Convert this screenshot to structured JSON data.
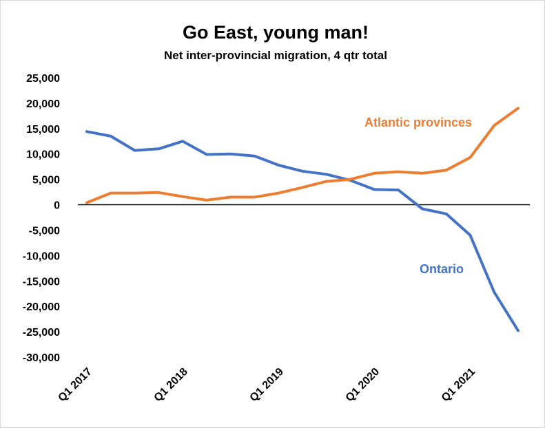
{
  "chart_data": {
    "type": "line",
    "title": "Go East, young man!",
    "subtitle": "Net inter-provincial migration, 4 qtr total",
    "xlabel": "",
    "ylabel": "",
    "ylim": [
      -30000,
      25000
    ],
    "y_ticks": [
      25000,
      20000,
      15000,
      10000,
      5000,
      0,
      -5000,
      -10000,
      -15000,
      -20000,
      -25000,
      -30000
    ],
    "y_tick_labels": [
      "25,000",
      "20,000",
      "15,000",
      "10,000",
      "5,000",
      "0",
      "-5,000",
      "-10,000",
      "-15,000",
      "-20,000",
      "-25,000",
      "-30,000"
    ],
    "x": [
      "Q1 2017",
      "Q2 2017",
      "Q3 2017",
      "Q4 2017",
      "Q1 2018",
      "Q2 2018",
      "Q3 2018",
      "Q4 2018",
      "Q1 2019",
      "Q2 2019",
      "Q3 2019",
      "Q4 2019",
      "Q1 2020",
      "Q2 2020",
      "Q3 2020",
      "Q4 2020",
      "Q1 2021",
      "Q2 2021",
      "Q3 2021"
    ],
    "x_tick_labels": [
      "Q1 2017",
      "Q1 2018",
      "Q1 2019",
      "Q1 2020",
      "Q1 2021"
    ],
    "x_tick_indices": [
      0,
      4,
      8,
      12,
      16
    ],
    "grid": false,
    "zero_line": true,
    "legend": "none",
    "series": [
      {
        "name": "Ontario",
        "color": "#4472C4",
        "values": [
          14400,
          13500,
          10700,
          11000,
          12500,
          9900,
          10000,
          9600,
          7800,
          6600,
          6000,
          4800,
          3000,
          2900,
          -800,
          -1800,
          -6000,
          -17200,
          -24800
        ]
      },
      {
        "name": "Atlantic provinces",
        "color": "#ED7D31",
        "values": [
          400,
          2300,
          2300,
          2400,
          1600,
          900,
          1500,
          1500,
          2300,
          3400,
          4600,
          5000,
          6200,
          6500,
          6200,
          6800,
          9300,
          15600,
          19000
        ]
      }
    ]
  }
}
